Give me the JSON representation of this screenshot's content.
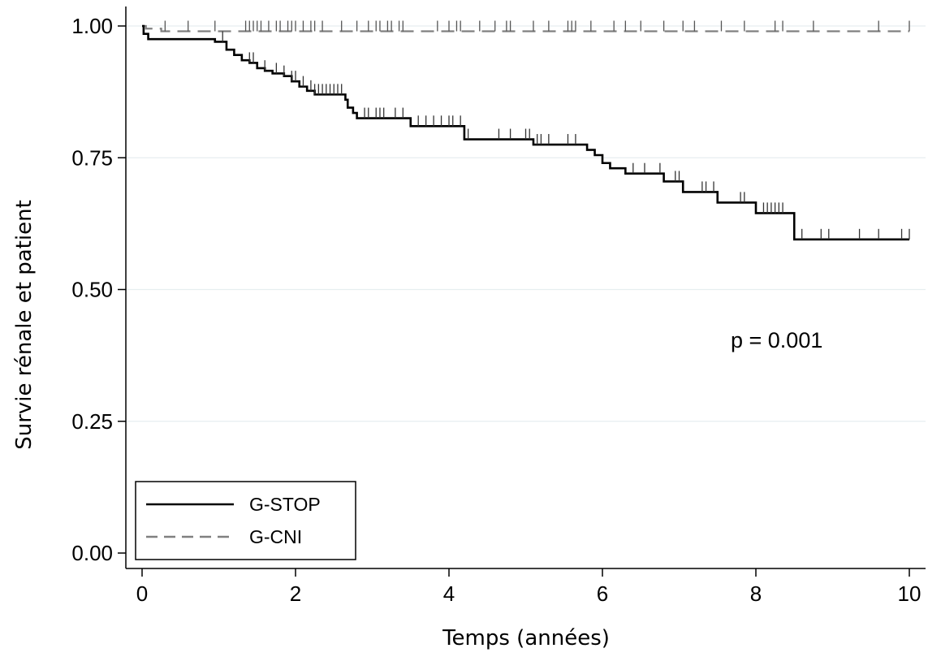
{
  "chart_data": {
    "type": "line",
    "subtype": "kaplan-meier step",
    "xlabel": "Temps (années)",
    "ylabel": "Survie rénale et patient",
    "xlim": [
      0,
      10
    ],
    "ylim": [
      0,
      1
    ],
    "x_ticks": [
      "0",
      "2",
      "4",
      "6",
      "8",
      "10"
    ],
    "y_ticks": [
      "0.00",
      "0.25",
      "0.50",
      "0.75",
      "1.00"
    ],
    "grid": "horizontal",
    "legend_position": "bottom-left",
    "annotation": "p = 0.001",
    "series": [
      {
        "name": "G-STOP",
        "color": "#000000",
        "style": "solid",
        "x": [
          0,
          0.02,
          0.08,
          0.95,
          1.1,
          1.2,
          1.3,
          1.4,
          1.5,
          1.6,
          1.7,
          1.85,
          1.95,
          2.05,
          2.15,
          2.25,
          2.65,
          2.68,
          2.75,
          2.8,
          3.5,
          4.2,
          5.1,
          5.8,
          5.9,
          6.0,
          6.1,
          6.3,
          6.8,
          7.05,
          7.5,
          8.0,
          8.5,
          10.0
        ],
        "y": [
          1.0,
          0.985,
          0.975,
          0.97,
          0.955,
          0.945,
          0.935,
          0.93,
          0.92,
          0.915,
          0.91,
          0.905,
          0.895,
          0.885,
          0.877,
          0.87,
          0.86,
          0.845,
          0.835,
          0.825,
          0.81,
          0.785,
          0.775,
          0.765,
          0.755,
          0.74,
          0.73,
          0.72,
          0.705,
          0.685,
          0.665,
          0.645,
          0.595,
          0.595
        ],
        "censor_x": [
          1.05,
          1.4,
          1.45,
          1.6,
          1.75,
          1.85,
          1.95,
          2.0,
          2.1,
          2.2,
          2.25,
          2.3,
          2.35,
          2.4,
          2.45,
          2.5,
          2.55,
          2.6,
          2.9,
          2.95,
          3.05,
          3.1,
          3.15,
          3.3,
          3.4,
          3.6,
          3.7,
          3.8,
          3.9,
          4.0,
          4.05,
          4.15,
          4.25,
          4.65,
          4.8,
          5.0,
          5.05,
          5.15,
          5.2,
          5.3,
          5.55,
          5.65,
          6.4,
          6.55,
          6.75,
          6.95,
          7.0,
          7.3,
          7.35,
          7.45,
          7.8,
          7.85,
          8.1,
          8.15,
          8.2,
          8.25,
          8.3,
          8.35,
          8.6,
          8.85,
          8.95,
          9.35,
          9.6,
          9.9,
          10.0
        ]
      },
      {
        "name": "G-CNI",
        "color": "#808080",
        "style": "dashed",
        "x": [
          0,
          0.05,
          0.25,
          10.0
        ],
        "y": [
          1.0,
          0.995,
          0.99,
          0.99
        ],
        "censor_x": [
          0.3,
          0.6,
          0.95,
          1.35,
          1.4,
          1.45,
          1.5,
          1.55,
          1.65,
          1.75,
          1.8,
          1.9,
          1.95,
          2.0,
          2.1,
          2.2,
          2.25,
          2.35,
          2.6,
          2.8,
          2.95,
          3.05,
          3.1,
          3.2,
          3.25,
          3.35,
          3.4,
          3.85,
          4.0,
          4.1,
          4.15,
          4.4,
          4.6,
          4.75,
          4.8,
          5.1,
          5.3,
          5.55,
          5.6,
          5.65,
          5.85,
          6.15,
          6.3,
          6.5,
          6.8,
          7.05,
          7.2,
          7.55,
          7.85,
          8.25,
          8.35,
          8.75,
          9.6,
          10.0
        ]
      }
    ]
  }
}
